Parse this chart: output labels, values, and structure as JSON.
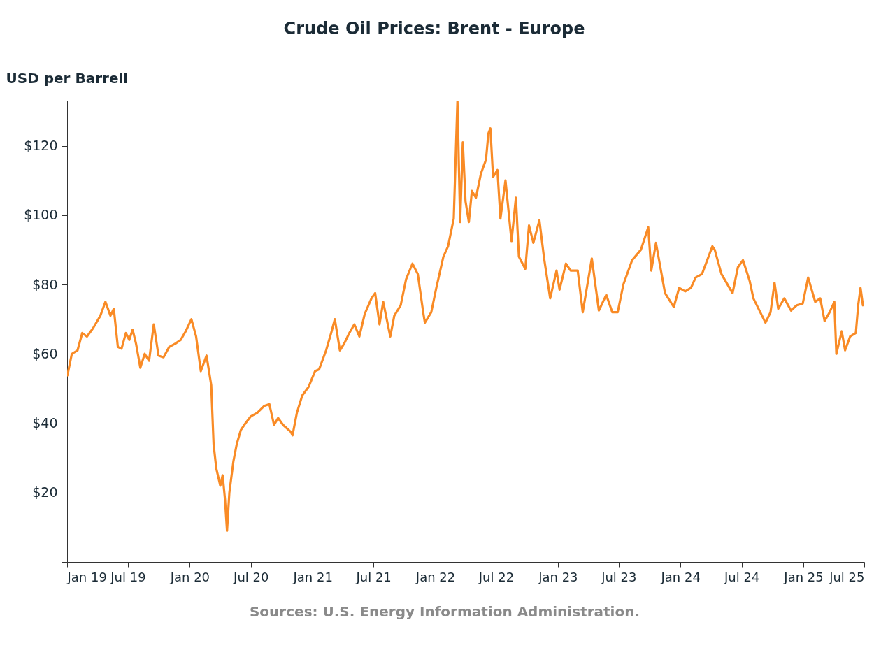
{
  "chart_data": {
    "type": "line",
    "title": "Crude Oil Prices: Brent - Europe",
    "ylabel": "USD per Barrell",
    "annotations": [
      "Sources: U.S. Energy Information Administration."
    ],
    "x": [
      "2019-01-02",
      "2019-01-15",
      "2019-02-01",
      "2019-02-15",
      "2019-03-01",
      "2019-03-20",
      "2019-04-10",
      "2019-04-25",
      "2019-05-10",
      "2019-05-20",
      "2019-06-01",
      "2019-06-12",
      "2019-06-25",
      "2019-07-05",
      "2019-07-15",
      "2019-07-25",
      "2019-08-07",
      "2019-08-20",
      "2019-09-02",
      "2019-09-16",
      "2019-09-30",
      "2019-10-15",
      "2019-11-01",
      "2019-11-20",
      "2019-12-05",
      "2019-12-20",
      "2020-01-06",
      "2020-01-20",
      "2020-02-03",
      "2020-02-20",
      "2020-03-05",
      "2020-03-12",
      "2020-03-20",
      "2020-04-01",
      "2020-04-08",
      "2020-04-15",
      "2020-04-21",
      "2020-04-28",
      "2020-05-10",
      "2020-05-20",
      "2020-06-01",
      "2020-06-15",
      "2020-07-01",
      "2020-07-20",
      "2020-08-10",
      "2020-08-25",
      "2020-09-08",
      "2020-09-20",
      "2020-10-05",
      "2020-10-28",
      "2020-11-02",
      "2020-11-15",
      "2020-12-01",
      "2020-12-20",
      "2021-01-08",
      "2021-01-20",
      "2021-02-10",
      "2021-02-25",
      "2021-03-08",
      "2021-03-23",
      "2021-04-05",
      "2021-04-20",
      "2021-05-05",
      "2021-05-20",
      "2021-06-05",
      "2021-06-25",
      "2021-07-06",
      "2021-07-19",
      "2021-07-30",
      "2021-08-20",
      "2021-09-01",
      "2021-09-20",
      "2021-10-06",
      "2021-10-25",
      "2021-11-10",
      "2021-11-26",
      "2021-12-01",
      "2021-12-20",
      "2022-01-04",
      "2022-01-25",
      "2022-02-08",
      "2022-02-25",
      "2022-03-08",
      "2022-03-16",
      "2022-03-24",
      "2022-04-01",
      "2022-04-11",
      "2022-04-20",
      "2022-05-02",
      "2022-05-17",
      "2022-06-01",
      "2022-06-08",
      "2022-06-14",
      "2022-06-22",
      "2022-07-05",
      "2022-07-14",
      "2022-07-29",
      "2022-08-16",
      "2022-08-29",
      "2022-09-07",
      "2022-09-26",
      "2022-10-07",
      "2022-10-20",
      "2022-11-07",
      "2022-11-21",
      "2022-12-09",
      "2022-12-28",
      "2023-01-06",
      "2023-01-25",
      "2023-02-08",
      "2023-03-01",
      "2023-03-16",
      "2023-04-12",
      "2023-05-03",
      "2023-05-25",
      "2023-06-12",
      "2023-06-28",
      "2023-07-15",
      "2023-08-10",
      "2023-09-05",
      "2023-09-27",
      "2023-10-06",
      "2023-10-20",
      "2023-11-16",
      "2023-12-12",
      "2023-12-28",
      "2024-01-15",
      "2024-02-01",
      "2024-02-15",
      "2024-03-05",
      "2024-04-05",
      "2024-04-12",
      "2024-05-02",
      "2024-06-04",
      "2024-06-20",
      "2024-07-05",
      "2024-07-25",
      "2024-08-05",
      "2024-09-10",
      "2024-09-25",
      "2024-10-07",
      "2024-10-18",
      "2024-11-05",
      "2024-11-25",
      "2024-12-12",
      "2024-12-30",
      "2025-01-15",
      "2025-02-05",
      "2025-02-20",
      "2025-03-05",
      "2025-03-20",
      "2025-04-03",
      "2025-04-09",
      "2025-04-25",
      "2025-05-05",
      "2025-05-20",
      "2025-06-06",
      "2025-06-13",
      "2025-06-20",
      "2025-06-27"
    ],
    "series": [
      {
        "color": "#f98b26",
        "values": [
          53.8,
          60,
          61,
          66,
          65,
          67.5,
          71,
          75,
          71,
          73,
          62,
          61.5,
          66,
          64,
          67,
          63,
          56,
          60,
          58,
          68.5,
          59.5,
          59,
          62,
          63,
          64,
          66.5,
          70,
          65,
          55,
          59.5,
          51,
          34,
          27,
          22,
          25,
          18,
          9,
          20,
          29,
          34,
          38,
          40,
          42,
          43,
          45,
          45.5,
          39.5,
          41.5,
          39.5,
          37.5,
          36.5,
          43,
          48,
          50.5,
          55,
          55.5,
          61,
          66,
          70,
          61,
          63,
          66,
          68.5,
          65,
          71.5,
          76,
          77.5,
          68.5,
          75,
          65,
          71,
          74,
          81.5,
          86,
          83,
          72,
          69,
          72,
          79,
          88,
          91,
          99,
          133,
          98,
          121,
          104,
          98,
          107,
          105,
          112,
          116,
          123.5,
          125,
          111,
          113,
          99,
          110,
          92.5,
          105,
          88,
          84.5,
          97,
          92,
          98.5,
          87.5,
          76,
          84,
          78.5,
          86,
          84,
          84,
          72,
          87.5,
          72.5,
          77,
          72,
          72,
          80,
          87,
          90,
          96.5,
          84,
          92,
          77.5,
          73.5,
          79,
          78,
          79,
          82,
          83,
          91,
          90,
          83,
          77.5,
          85,
          87,
          81,
          76,
          69,
          72,
          80.5,
          73,
          76,
          72.5,
          74,
          74.5,
          82,
          75,
          76,
          69.5,
          72,
          75,
          60,
          66.5,
          61,
          65,
          66,
          74,
          79,
          74
        ]
      }
    ],
    "xlim": [
      "2019-01-01",
      "2025-07-01"
    ],
    "xticks": [
      {
        "value": "2019-01-01",
        "label": "Jan 19"
      },
      {
        "value": "2019-07-01",
        "label": "Jul 19"
      },
      {
        "value": "2020-01-01",
        "label": "Jan 20"
      },
      {
        "value": "2020-07-01",
        "label": "Jul 20"
      },
      {
        "value": "2021-01-01",
        "label": "Jan 21"
      },
      {
        "value": "2021-07-01",
        "label": "Jul 21"
      },
      {
        "value": "2022-01-01",
        "label": "Jan 22"
      },
      {
        "value": "2022-07-01",
        "label": "Jul 22"
      },
      {
        "value": "2023-01-01",
        "label": "Jan 23"
      },
      {
        "value": "2023-07-01",
        "label": "Jul 23"
      },
      {
        "value": "2024-01-01",
        "label": "Jan 24"
      },
      {
        "value": "2024-07-01",
        "label": "Jul 24"
      },
      {
        "value": "2025-01-01",
        "label": "Jan 25"
      },
      {
        "value": "2025-07-01",
        "label": "Jul 25"
      }
    ],
    "ylim": [
      0,
      133
    ],
    "yticks": [
      {
        "value": 0,
        "label": null
      },
      {
        "value": 20,
        "label": "$20"
      },
      {
        "value": 40,
        "label": "$40"
      },
      {
        "value": 60,
        "label": "$60"
      },
      {
        "value": 80,
        "label": "$80"
      },
      {
        "value": 100,
        "label": "$100"
      },
      {
        "value": 120,
        "label": "$120"
      }
    ],
    "grid": false,
    "marker": "none",
    "line_style": "solid"
  }
}
